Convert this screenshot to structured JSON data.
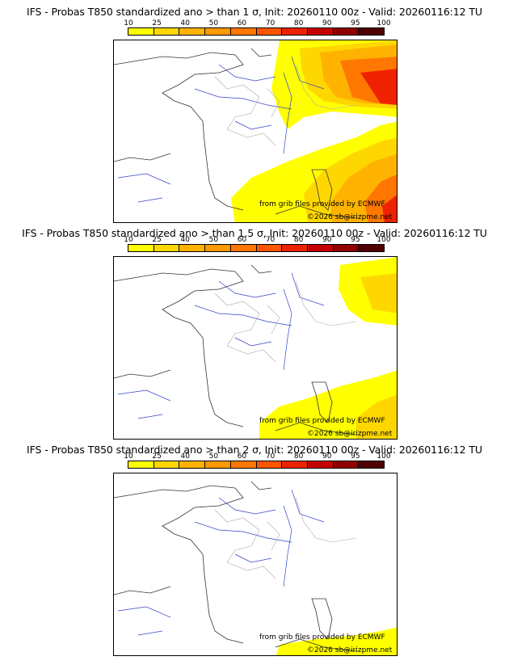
{
  "colorbar": {
    "labels": [
      "10",
      "25",
      "40",
      "50",
      "60",
      "70",
      "80",
      "90",
      "95",
      "100"
    ],
    "colors": [
      "#ffff00",
      "#ffd700",
      "#ffb300",
      "#ff9900",
      "#ff7700",
      "#ff5500",
      "#ee2200",
      "#c40000",
      "#900000",
      "#500000"
    ]
  },
  "panels": [
    {
      "title": "IFS - Probas T850  standardized ano > than 1 σ, Init: 20260110 00z - Valid: 20260116:12 TU",
      "credit_source": "from grib files provided by ECMWF",
      "credit_copyright": "©2026 sb@irizpme.net"
    },
    {
      "title": "IFS - Probas T850  standardized ano > than 1.5 σ, Init: 20260110 00z - Valid: 20260116:12 TU",
      "credit_source": "from grib files provided by ECMWF",
      "credit_copyright": "©2026 sb@irizpme.net"
    },
    {
      "title": "IFS - Probas T850  standardized ano > than 2 σ, Init: 20260110 00z - Valid: 20260116:12 TU",
      "credit_source": "from grib files provided by ECMWF",
      "credit_copyright": "©2026 sb@irizpme.net"
    }
  ]
}
